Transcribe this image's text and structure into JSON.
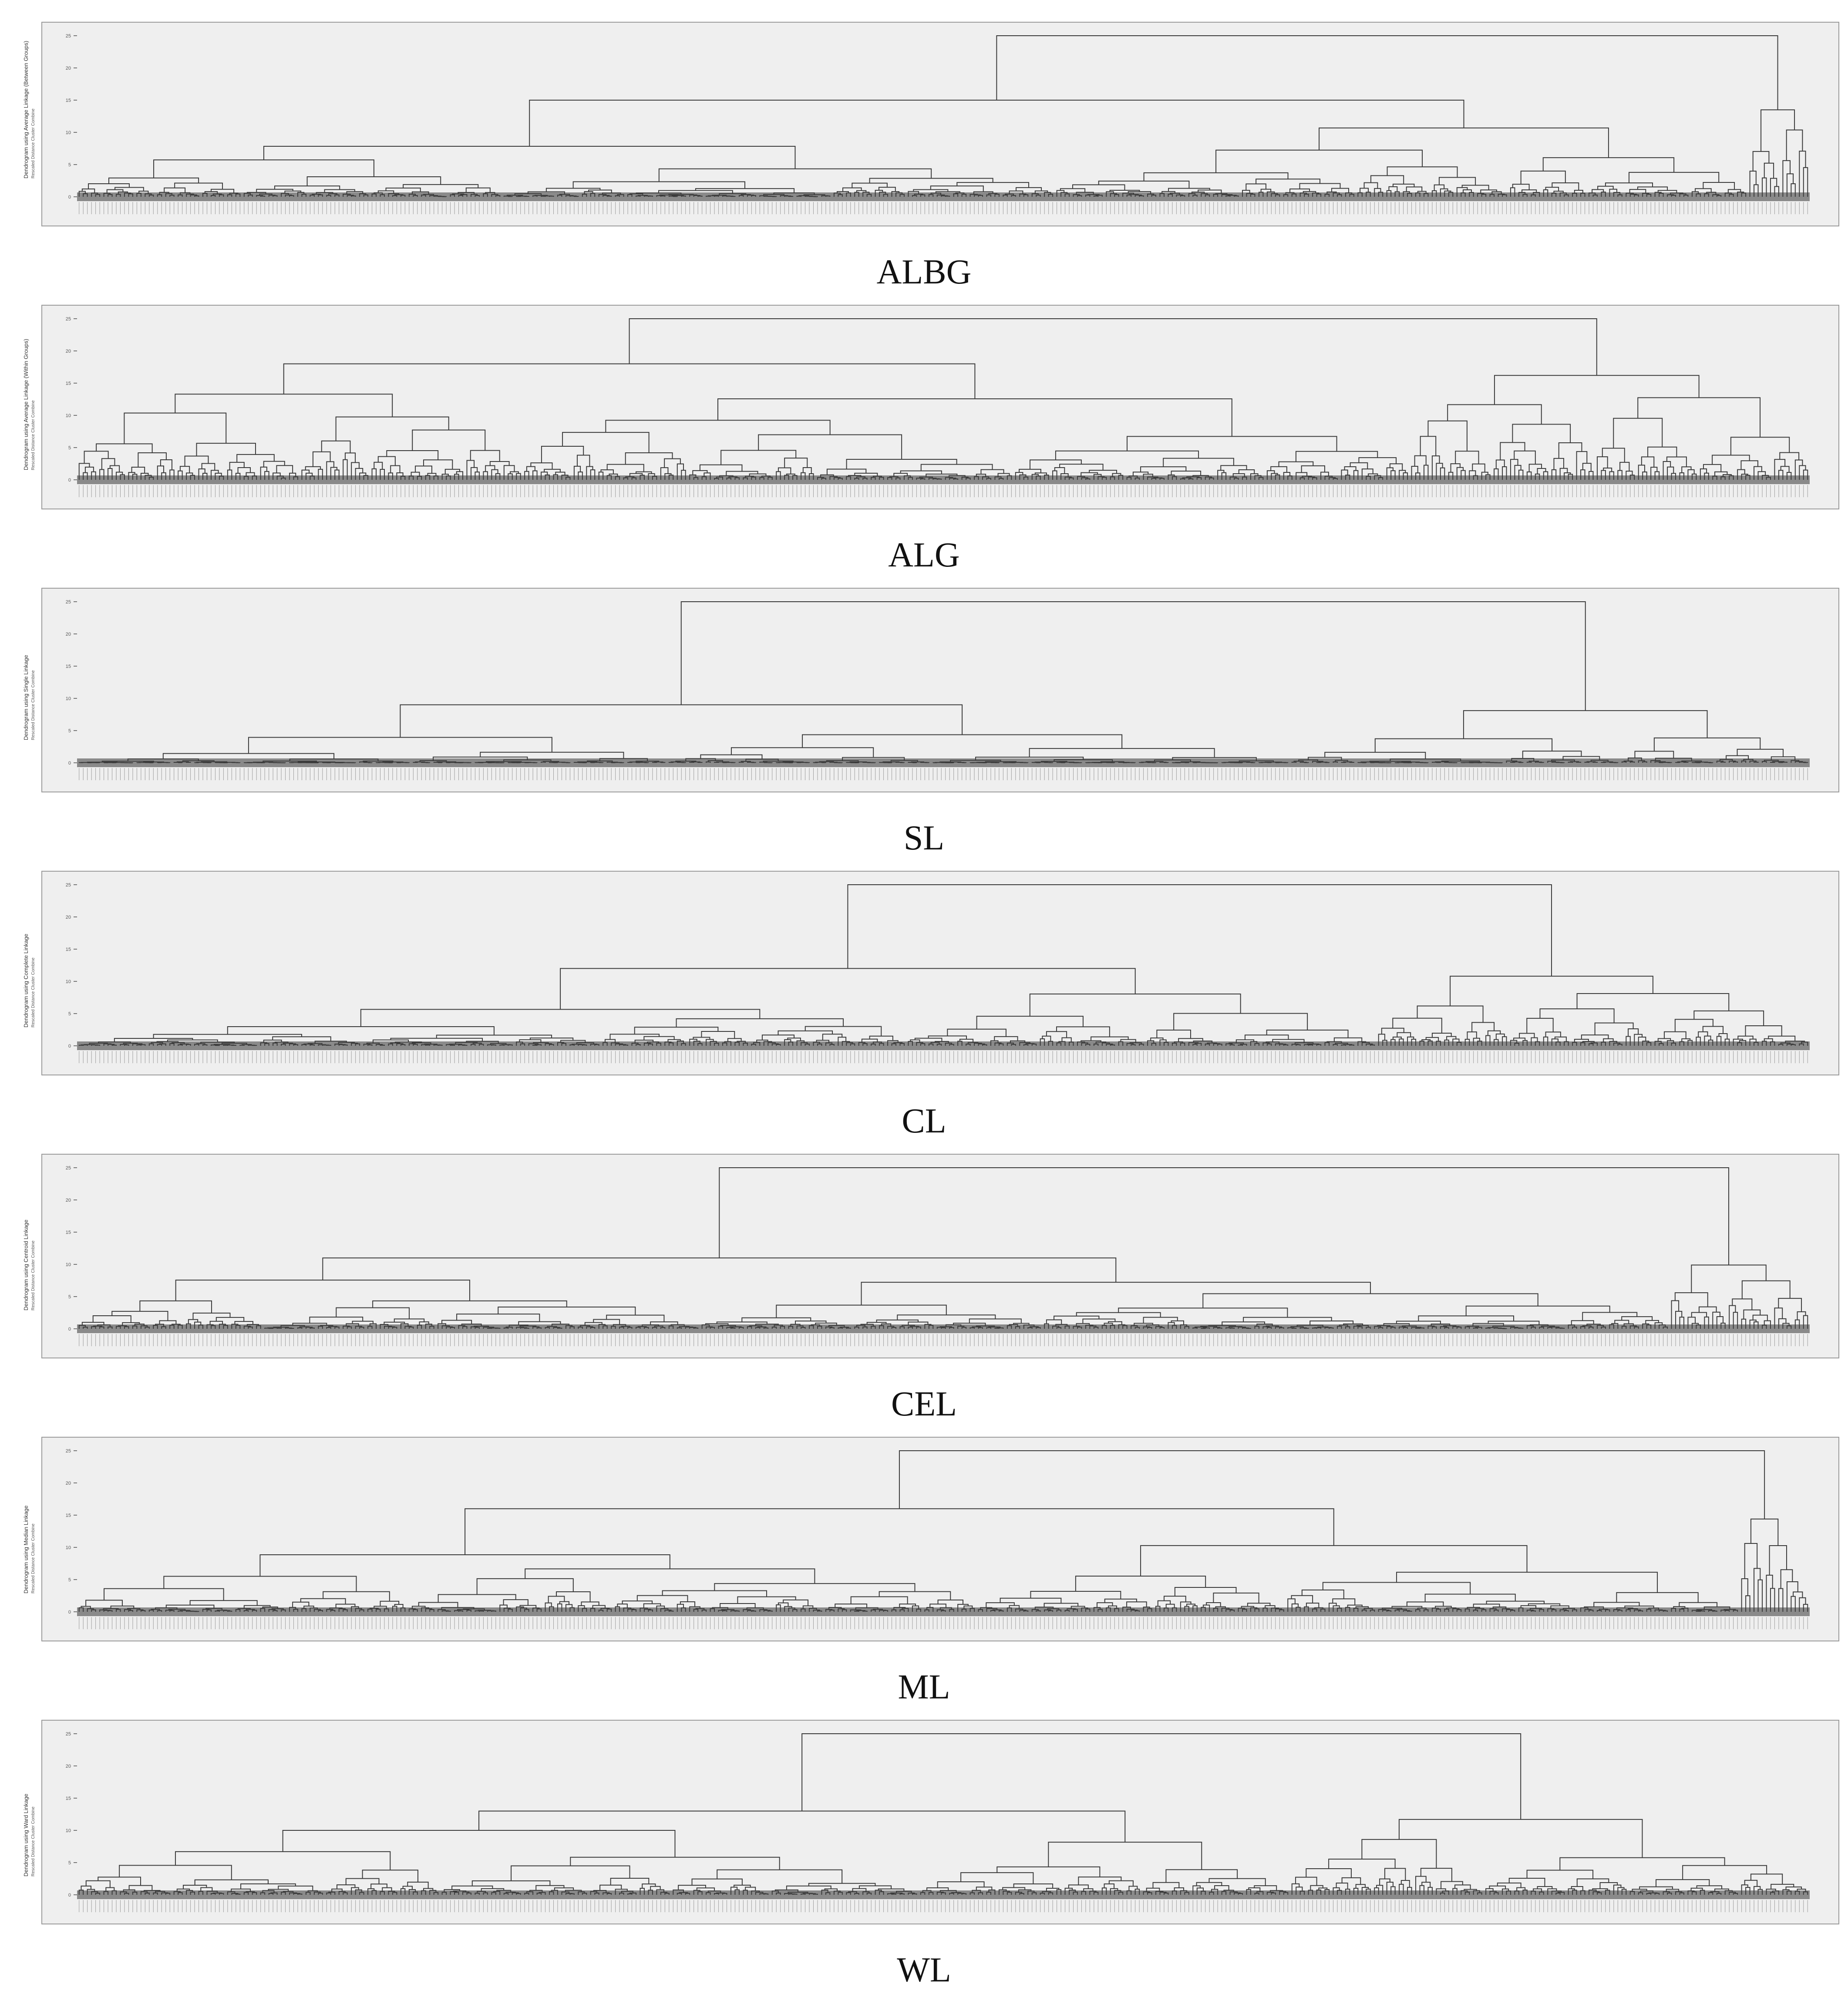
{
  "figure": {
    "panels": [
      {
        "caption": "ALBG",
        "ytitle": "Dendrogram using Average Linkage (Between Groups)",
        "ysubtitle": "Rescaled Distance Cluster Combine",
        "yticks": [
          "0",
          "5",
          "10",
          "15",
          "20",
          "25"
        ],
        "style": "albg"
      },
      {
        "caption": "ALG",
        "ytitle": "Dendrogram using Average Linkage (Within Groups)",
        "ysubtitle": "Rescaled Distance Cluster Combine",
        "yticks": [
          "0",
          "5",
          "10",
          "15",
          "20",
          "25"
        ],
        "style": "alg"
      },
      {
        "caption": "SL",
        "ytitle": "Dendrogram using Single Linkage",
        "ysubtitle": "Rescaled Distance Cluster Combine",
        "yticks": [
          "0",
          "5",
          "10",
          "15",
          "20",
          "25"
        ],
        "style": "sl"
      },
      {
        "caption": "CL",
        "ytitle": "Dendrogram using Complete Linkage",
        "ysubtitle": "Rescaled Distance Cluster Combine",
        "yticks": [
          "0",
          "5",
          "10",
          "15",
          "20",
          "25"
        ],
        "style": "cl"
      },
      {
        "caption": "CEL",
        "ytitle": "Dendrogram using Centroid Linkage",
        "ysubtitle": "Rescaled Distance Cluster Combine",
        "yticks": [
          "0",
          "5",
          "10",
          "15",
          "20",
          "25"
        ],
        "style": "cel"
      },
      {
        "caption": "ML",
        "ytitle": "Dendrogram using Median Linkage",
        "ysubtitle": "Rescaled Distance Cluster Combine",
        "yticks": [
          "0",
          "5",
          "10",
          "15",
          "20",
          "25"
        ],
        "style": "ml"
      },
      {
        "caption": "WL",
        "ytitle": "Dendrogram using Ward Linkage",
        "ysubtitle": "Rescaled Distance Cluster Combine",
        "yticks": [
          "0",
          "5",
          "10",
          "15",
          "20",
          "25"
        ],
        "style": "wl"
      }
    ]
  },
  "chart_data": [
    {
      "type": "dendrogram",
      "title": "ALBG",
      "ylabel": "Rescaled Distance Cluster Combine",
      "ylim": [
        0,
        25
      ],
      "top_merges": [
        {
          "height": 25,
          "left_center": 0.5,
          "right_center": 0.99
        },
        {
          "height": 15,
          "left_center": 0.22,
          "right_center": 0.72
        }
      ]
    },
    {
      "type": "dendrogram",
      "title": "ALG",
      "ylabel": "Rescaled Distance Cluster Combine",
      "ylim": [
        0,
        25
      ],
      "top_merges": [
        {
          "height": 25,
          "left_center": 0.4,
          "right_center": 0.85
        },
        {
          "height": 18,
          "left_center": 0.2,
          "right_center": 0.6
        }
      ]
    },
    {
      "type": "dendrogram",
      "title": "SL",
      "ylabel": "Rescaled Distance Cluster Combine",
      "ylim": [
        0,
        25
      ],
      "top_merges": [
        {
          "height": 25,
          "left_center": 0.33,
          "right_center": 0.86
        },
        {
          "height": 9,
          "left_center": 0.45,
          "right_center": 0.6
        }
      ]
    },
    {
      "type": "dendrogram",
      "title": "CL",
      "ylabel": "Rescaled Distance Cluster Combine",
      "ylim": [
        0,
        25
      ],
      "top_merges": [
        {
          "height": 25,
          "left_center": 0.4,
          "right_center": 0.81
        },
        {
          "height": 12,
          "left_center": 0.24,
          "right_center": 0.57
        }
      ]
    },
    {
      "type": "dendrogram",
      "title": "CEL",
      "ylabel": "Rescaled Distance Cluster Combine",
      "ylim": [
        0,
        25
      ],
      "top_merges": [
        {
          "height": 25,
          "left_center": 0.57,
          "right_center": 0.96
        },
        {
          "height": 11,
          "left_center": 0.38,
          "right_center": 0.77
        }
      ]
    },
    {
      "type": "dendrogram",
      "title": "ML",
      "ylabel": "Rescaled Distance Cluster Combine",
      "ylim": [
        0,
        25
      ],
      "top_merges": [
        {
          "height": 25,
          "left_center": 0.55,
          "right_center": 0.98
        },
        {
          "height": 16,
          "left_center": 0.38,
          "right_center": 0.71
        }
      ]
    },
    {
      "type": "dendrogram",
      "title": "WL",
      "ylabel": "Rescaled Distance Cluster Combine",
      "ylim": [
        0,
        25
      ],
      "top_merges": [
        {
          "height": 25,
          "left_center": 0.41,
          "right_center": 0.86
        },
        {
          "height": 13,
          "left_center": 0.23,
          "right_center": 0.6
        }
      ]
    }
  ]
}
